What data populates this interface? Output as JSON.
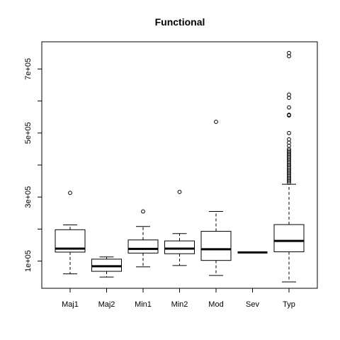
{
  "chart_data": {
    "type": "box",
    "title": "Functional",
    "xlabel": "",
    "ylabel": "",
    "categories": [
      "Maj1",
      "Maj2",
      "Min1",
      "Min2",
      "Mod",
      "Sev",
      "Typ"
    ],
    "y_ticks": [
      {
        "value": 100000,
        "label": "1e+05"
      },
      {
        "value": 300000,
        "label": "3e+05"
      },
      {
        "value": 500000,
        "label": "5e+05"
      },
      {
        "value": 700000,
        "label": "7e+05"
      }
    ],
    "ylim": [
      15000,
      785000
    ],
    "grid": false,
    "legend": "none",
    "boxes": [
      {
        "name": "Maj1",
        "whisker_low": 60000,
        "q1": 128000,
        "median": 139000,
        "q3": 198000,
        "whisker_high": 213000,
        "outliers": [
          313000
        ]
      },
      {
        "name": "Maj2",
        "whisker_low": 50000,
        "q1": 68000,
        "median": 84000,
        "q3": 106000,
        "whisker_high": 113000,
        "outliers": []
      },
      {
        "name": "Min1",
        "whisker_low": 82000,
        "q1": 125000,
        "median": 138000,
        "q3": 166000,
        "whisker_high": 208000,
        "outliers": [
          255000
        ]
      },
      {
        "name": "Min2",
        "whisker_low": 86000,
        "q1": 123000,
        "median": 139000,
        "q3": 163000,
        "whisker_high": 186000,
        "outliers": [
          316000
        ]
      },
      {
        "name": "Mod",
        "whisker_low": 55000,
        "q1": 102000,
        "median": 137000,
        "q3": 193000,
        "whisker_high": 255000,
        "outliers": [
          535000
        ]
      },
      {
        "name": "Sev",
        "whisker_low": 127000,
        "q1": 127000,
        "median": 127000,
        "q3": 127000,
        "whisker_high": 127000,
        "outliers": []
      },
      {
        "name": "Typ",
        "whisker_low": 35000,
        "q1": 129000,
        "median": 163000,
        "q3": 214000,
        "whisker_high": 340000,
        "outliers": [
          345000,
          350000,
          355000,
          360000,
          365000,
          370000,
          375000,
          380000,
          385000,
          390000,
          395000,
          400000,
          405000,
          410000,
          415000,
          420000,
          425000,
          430000,
          435000,
          440000,
          445000,
          450000,
          460000,
          470000,
          480000,
          500000,
          555000,
          557000,
          580000,
          610000,
          620000,
          740000,
          750000
        ]
      }
    ]
  }
}
